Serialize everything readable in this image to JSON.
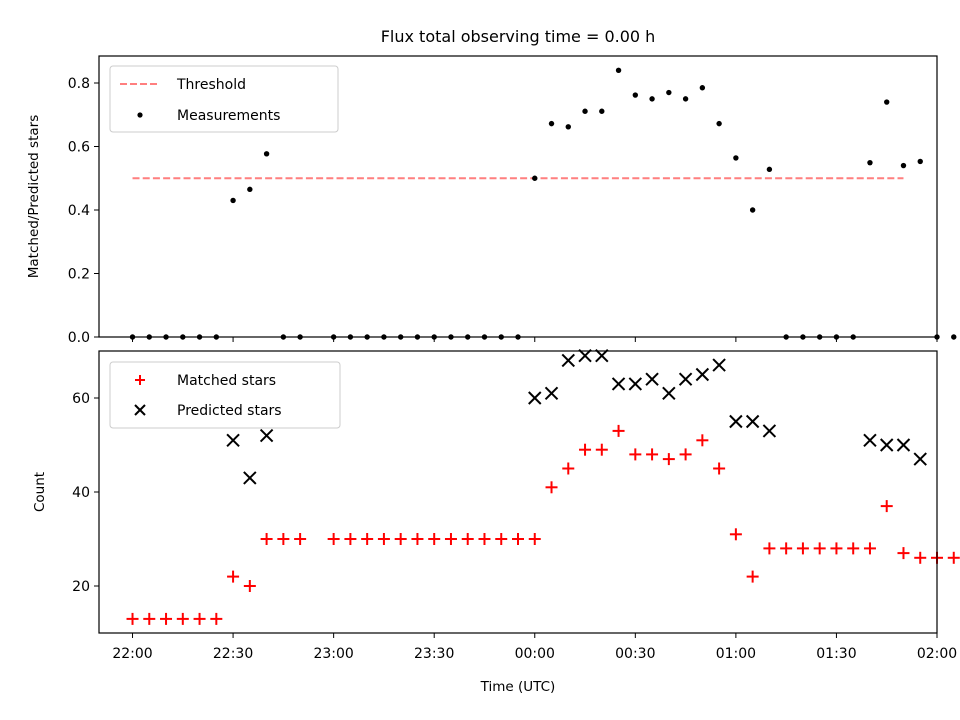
{
  "chart_data": [
    {
      "type": "scatter",
      "title": "Flux total observing time = 0.00 h",
      "ylabel": "Matched/Predicted stars",
      "xlabel": "",
      "ylim": [
        0,
        0.885
      ],
      "yticks": [
        0.0,
        0.2,
        0.4,
        0.6,
        0.8
      ],
      "ytick_labels": [
        "0.0",
        "0.2",
        "0.4",
        "0.6",
        "0.8"
      ],
      "x_unit": "minutes after 22:00 UTC",
      "xlim": [
        -10,
        240
      ],
      "legend": {
        "position": "upper-left",
        "entries": [
          "Threshold",
          "Measurements"
        ]
      },
      "threshold": {
        "name": "Threshold",
        "y": 0.5,
        "x_start": 0,
        "x_end": 230,
        "color": "#ff7f7f",
        "style": "dashed"
      },
      "series": [
        {
          "name": "Measurements",
          "marker": "dot",
          "color": "#000000",
          "points": [
            {
              "x": 0,
              "y": 0
            },
            {
              "x": 5,
              "y": 0
            },
            {
              "x": 10,
              "y": 0
            },
            {
              "x": 15,
              "y": 0
            },
            {
              "x": 20,
              "y": 0
            },
            {
              "x": 25,
              "y": 0
            },
            {
              "x": 30,
              "y": 0.43
            },
            {
              "x": 35,
              "y": 0.465
            },
            {
              "x": 40,
              "y": 0.577
            },
            {
              "x": 45,
              "y": 0
            },
            {
              "x": 50,
              "y": 0
            },
            {
              "x": 60,
              "y": 0
            },
            {
              "x": 65,
              "y": 0
            },
            {
              "x": 70,
              "y": 0
            },
            {
              "x": 75,
              "y": 0
            },
            {
              "x": 80,
              "y": 0
            },
            {
              "x": 85,
              "y": 0
            },
            {
              "x": 90,
              "y": 0
            },
            {
              "x": 95,
              "y": 0
            },
            {
              "x": 100,
              "y": 0
            },
            {
              "x": 105,
              "y": 0
            },
            {
              "x": 110,
              "y": 0
            },
            {
              "x": 115,
              "y": 0
            },
            {
              "x": 120,
              "y": 0.5
            },
            {
              "x": 125,
              "y": 0.672
            },
            {
              "x": 130,
              "y": 0.662
            },
            {
              "x": 135,
              "y": 0.711
            },
            {
              "x": 140,
              "y": 0.711
            },
            {
              "x": 145,
              "y": 0.84
            },
            {
              "x": 150,
              "y": 0.762
            },
            {
              "x": 155,
              "y": 0.75
            },
            {
              "x": 160,
              "y": 0.77
            },
            {
              "x": 165,
              "y": 0.75
            },
            {
              "x": 170,
              "y": 0.785
            },
            {
              "x": 175,
              "y": 0.672
            },
            {
              "x": 180,
              "y": 0.564
            },
            {
              "x": 185,
              "y": 0.4
            },
            {
              "x": 190,
              "y": 0.528
            },
            {
              "x": 195,
              "y": 0
            },
            {
              "x": 200,
              "y": 0
            },
            {
              "x": 205,
              "y": 0
            },
            {
              "x": 210,
              "y": 0
            },
            {
              "x": 215,
              "y": 0
            },
            {
              "x": 220,
              "y": 0.549
            },
            {
              "x": 225,
              "y": 0.74
            },
            {
              "x": 230,
              "y": 0.54
            },
            {
              "x": 235,
              "y": 0.553
            },
            {
              "x": 240,
              "y": 0
            },
            {
              "x": 245,
              "y": 0
            }
          ]
        }
      ]
    },
    {
      "type": "scatter",
      "title": "",
      "ylabel": "Count",
      "xlabel": "Time (UTC)",
      "ylim": [
        10,
        70
      ],
      "yticks": [
        20,
        40,
        60
      ],
      "ytick_labels": [
        "20",
        "40",
        "60"
      ],
      "x_unit": "minutes after 22:00 UTC",
      "xlim": [
        -10,
        240
      ],
      "xticks": [
        0,
        30,
        60,
        90,
        120,
        150,
        180,
        210,
        240
      ],
      "xtick_labels": [
        "22:00",
        "22:30",
        "23:00",
        "23:30",
        "00:00",
        "00:30",
        "01:00",
        "01:30",
        "02:00"
      ],
      "legend": {
        "position": "upper-left",
        "entries": [
          "Matched stars",
          "Predicted stars"
        ]
      },
      "series": [
        {
          "name": "Matched stars",
          "marker": "plus",
          "color": "#ff0000",
          "points": [
            {
              "x": 0,
              "y": 13
            },
            {
              "x": 5,
              "y": 13
            },
            {
              "x": 10,
              "y": 13
            },
            {
              "x": 15,
              "y": 13
            },
            {
              "x": 20,
              "y": 13
            },
            {
              "x": 25,
              "y": 13
            },
            {
              "x": 30,
              "y": 22
            },
            {
              "x": 35,
              "y": 20
            },
            {
              "x": 40,
              "y": 30
            },
            {
              "x": 45,
              "y": 30
            },
            {
              "x": 50,
              "y": 30
            },
            {
              "x": 60,
              "y": 30
            },
            {
              "x": 65,
              "y": 30
            },
            {
              "x": 70,
              "y": 30
            },
            {
              "x": 75,
              "y": 30
            },
            {
              "x": 80,
              "y": 30
            },
            {
              "x": 85,
              "y": 30
            },
            {
              "x": 90,
              "y": 30
            },
            {
              "x": 95,
              "y": 30
            },
            {
              "x": 100,
              "y": 30
            },
            {
              "x": 105,
              "y": 30
            },
            {
              "x": 110,
              "y": 30
            },
            {
              "x": 115,
              "y": 30
            },
            {
              "x": 120,
              "y": 30
            },
            {
              "x": 125,
              "y": 41
            },
            {
              "x": 130,
              "y": 45
            },
            {
              "x": 135,
              "y": 49
            },
            {
              "x": 140,
              "y": 49
            },
            {
              "x": 145,
              "y": 53
            },
            {
              "x": 150,
              "y": 48
            },
            {
              "x": 155,
              "y": 48
            },
            {
              "x": 160,
              "y": 47
            },
            {
              "x": 165,
              "y": 48
            },
            {
              "x": 170,
              "y": 51
            },
            {
              "x": 175,
              "y": 45
            },
            {
              "x": 180,
              "y": 31
            },
            {
              "x": 185,
              "y": 22
            },
            {
              "x": 190,
              "y": 28
            },
            {
              "x": 195,
              "y": 28
            },
            {
              "x": 200,
              "y": 28
            },
            {
              "x": 205,
              "y": 28
            },
            {
              "x": 210,
              "y": 28
            },
            {
              "x": 215,
              "y": 28
            },
            {
              "x": 220,
              "y": 28
            },
            {
              "x": 225,
              "y": 37
            },
            {
              "x": 230,
              "y": 27
            },
            {
              "x": 235,
              "y": 26
            },
            {
              "x": 240,
              "y": 26
            },
            {
              "x": 245,
              "y": 26
            }
          ]
        },
        {
          "name": "Predicted stars",
          "marker": "x",
          "color": "#000000",
          "points": [
            {
              "x": 30,
              "y": 51
            },
            {
              "x": 35,
              "y": 43
            },
            {
              "x": 40,
              "y": 52
            },
            {
              "x": 120,
              "y": 60
            },
            {
              "x": 125,
              "y": 61
            },
            {
              "x": 130,
              "y": 68
            },
            {
              "x": 135,
              "y": 69
            },
            {
              "x": 140,
              "y": 69
            },
            {
              "x": 145,
              "y": 63
            },
            {
              "x": 150,
              "y": 63
            },
            {
              "x": 155,
              "y": 64
            },
            {
              "x": 160,
              "y": 61
            },
            {
              "x": 165,
              "y": 64
            },
            {
              "x": 170,
              "y": 65
            },
            {
              "x": 175,
              "y": 67
            },
            {
              "x": 180,
              "y": 55
            },
            {
              "x": 185,
              "y": 55
            },
            {
              "x": 190,
              "y": 53
            },
            {
              "x": 220,
              "y": 51
            },
            {
              "x": 225,
              "y": 50
            },
            {
              "x": 230,
              "y": 50
            },
            {
              "x": 235,
              "y": 47
            }
          ]
        }
      ]
    }
  ]
}
